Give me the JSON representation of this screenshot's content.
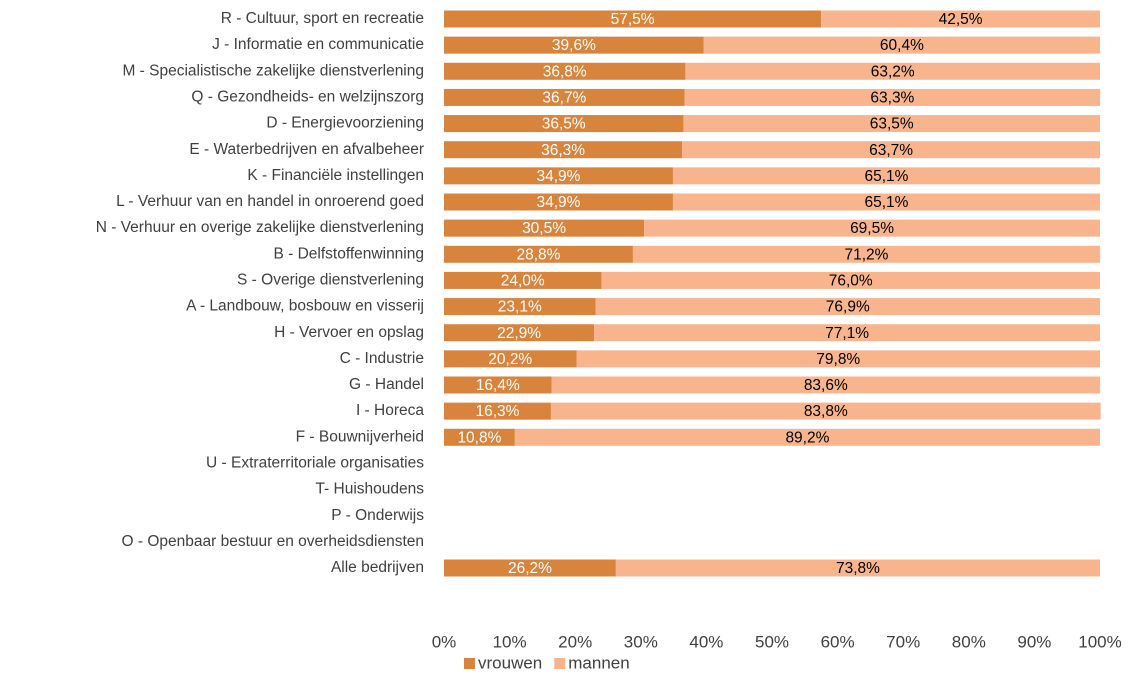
{
  "chart_data": {
    "type": "stacked_barh",
    "categories": [
      "R - Cultuur, sport en recreatie",
      "J - Informatie en communicatie",
      "M - Specialistische zakelijke dienstverlening",
      "Q - Gezondheids- en welzijnszorg",
      "D - Energievoorziening",
      "E - Waterbedrijven en afvalbeheer",
      "K - Financiële instellingen",
      "L - Verhuur van en handel in onroerend goed",
      "N - Verhuur en overige zakelijke dienstverlening",
      "B - Delfstoffenwinning",
      "S - Overige dienstverlening",
      "A - Landbouw, bosbouw en visserij",
      "H - Vervoer en opslag",
      "C - Industrie",
      "G - Handel",
      "I - Horeca",
      "F - Bouwnijverheid",
      "U - Extraterritoriale organisaties",
      "T- Huishoudens",
      "P - Onderwijs",
      "O - Openbaar bestuur en overheidsdiensten",
      "Alle bedrijven"
    ],
    "series": [
      {
        "name": "vrouwen",
        "color": "#d9843c",
        "label_color": "#ffffff",
        "values": [
          57.5,
          39.6,
          36.8,
          36.7,
          36.5,
          36.3,
          34.9,
          34.9,
          30.5,
          28.8,
          24.0,
          23.1,
          22.9,
          20.2,
          16.4,
          16.3,
          10.8,
          null,
          null,
          null,
          null,
          26.2
        ],
        "value_labels": [
          "57,5%",
          "39,6%",
          "36,8%",
          "36,7%",
          "36,5%",
          "36,3%",
          "34,9%",
          "34,9%",
          "30,5%",
          "28,8%",
          "24,0%",
          "23,1%",
          "22,9%",
          "20,2%",
          "16,4%",
          "16,3%",
          "10,8%",
          null,
          null,
          null,
          null,
          "26,2%"
        ]
      },
      {
        "name": "mannen",
        "color": "#f8b48c",
        "label_color": "#000000",
        "values": [
          42.5,
          60.4,
          63.2,
          63.3,
          63.5,
          63.7,
          65.1,
          65.1,
          69.5,
          71.2,
          76.0,
          76.9,
          77.1,
          79.8,
          83.6,
          83.8,
          89.2,
          null,
          null,
          null,
          null,
          73.8
        ],
        "value_labels": [
          "42,5%",
          "60,4%",
          "63,2%",
          "63,3%",
          "63,5%",
          "63,7%",
          "65,1%",
          "65,1%",
          "69,5%",
          "71,2%",
          "76,0%",
          "76,9%",
          "77,1%",
          "79,8%",
          "83,6%",
          "83,8%",
          "89,2%",
          null,
          null,
          null,
          null,
          "73,8%"
        ]
      }
    ],
    "xlim": [
      0,
      100
    ],
    "xticks": [
      {
        "value": 0,
        "label": "0%"
      },
      {
        "value": 10,
        "label": "10%"
      },
      {
        "value": 20,
        "label": "20%"
      },
      {
        "value": 30,
        "label": "30%"
      },
      {
        "value": 40,
        "label": "40%"
      },
      {
        "value": 50,
        "label": "50%"
      },
      {
        "value": 60,
        "label": "60%"
      },
      {
        "value": 70,
        "label": "70%"
      },
      {
        "value": 80,
        "label": "80%"
      },
      {
        "value": 90,
        "label": "90%"
      },
      {
        "value": 100,
        "label": "100%"
      }
    ],
    "legend": "bottom"
  }
}
